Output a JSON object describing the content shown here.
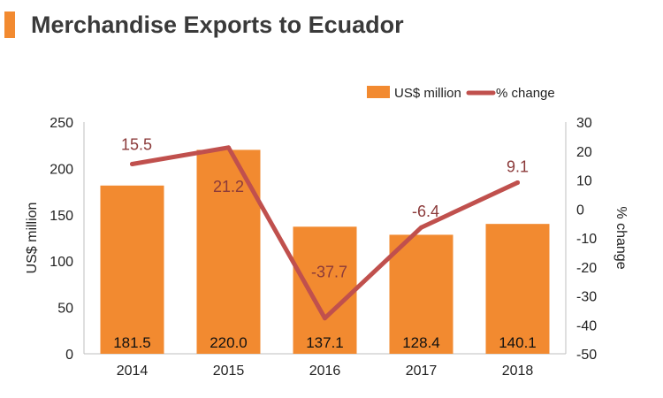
{
  "title": "Merchandise Exports to Ecuador",
  "colors": {
    "accent": "#f28a30",
    "bar": "#f28a30",
    "line": "#c0504d",
    "line_label": "#8b3a3a",
    "text": "#222222"
  },
  "chart_data": {
    "type": "bar",
    "categories": [
      "2014",
      "2015",
      "2016",
      "2017",
      "2018"
    ],
    "series": [
      {
        "name": "US$ million",
        "type": "bar",
        "axis": "left",
        "values": [
          181.5,
          220.0,
          137.1,
          128.4,
          140.1
        ]
      },
      {
        "name": "% change",
        "type": "line",
        "axis": "right",
        "values": [
          15.5,
          21.2,
          -37.7,
          -6.4,
          9.1
        ]
      }
    ],
    "ylabel": "US$ million",
    "ylabel_right": "% change",
    "ylim": [
      0,
      250
    ],
    "ylim_right": [
      -50,
      30
    ],
    "yticks": [
      0,
      50,
      100,
      150,
      200,
      250
    ],
    "yticks_right": [
      -50,
      -40,
      -30,
      -20,
      -10,
      0,
      10,
      20,
      30
    ],
    "bar_labels": [
      "181.5",
      "220.0",
      "137.1",
      "128.4",
      "140.1"
    ],
    "line_labels": [
      "15.5",
      "21.2",
      "-37.7",
      "-6.4",
      "9.1"
    ],
    "legend": "top-right",
    "grid": false
  }
}
